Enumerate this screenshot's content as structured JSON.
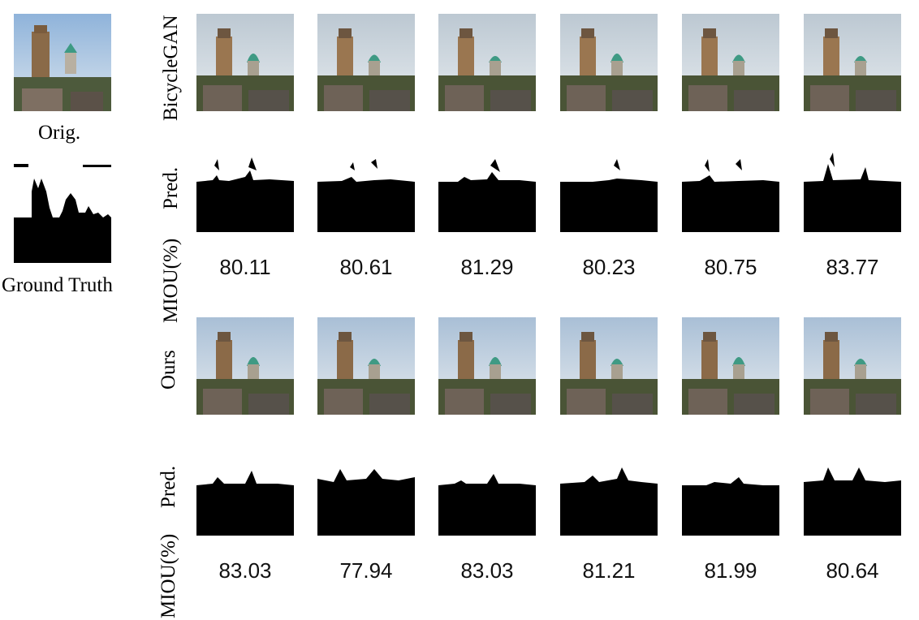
{
  "figure": {
    "orig_caption": "Orig.",
    "ground_truth_caption": "Ground Truth",
    "row_labels": {
      "bicyclegan": "BicycleGAN",
      "pred_top": "Pred.",
      "miou_top": "MIOU(%)",
      "ours": "Ours",
      "pred_bottom": "Pred.",
      "miou_bottom": "MIOU(%)"
    },
    "scores": {
      "bicyclegan": [
        "80.11",
        "80.61",
        "81.29",
        "80.23",
        "80.75",
        "83.77"
      ],
      "ours": [
        "83.03",
        "77.94",
        "83.03",
        "81.21",
        "81.99",
        "80.64"
      ]
    }
  },
  "colors": {
    "sky_bicyclegan": "#bcc8d2",
    "sky_ours": "#a9bfd6",
    "mask": "#000000"
  }
}
